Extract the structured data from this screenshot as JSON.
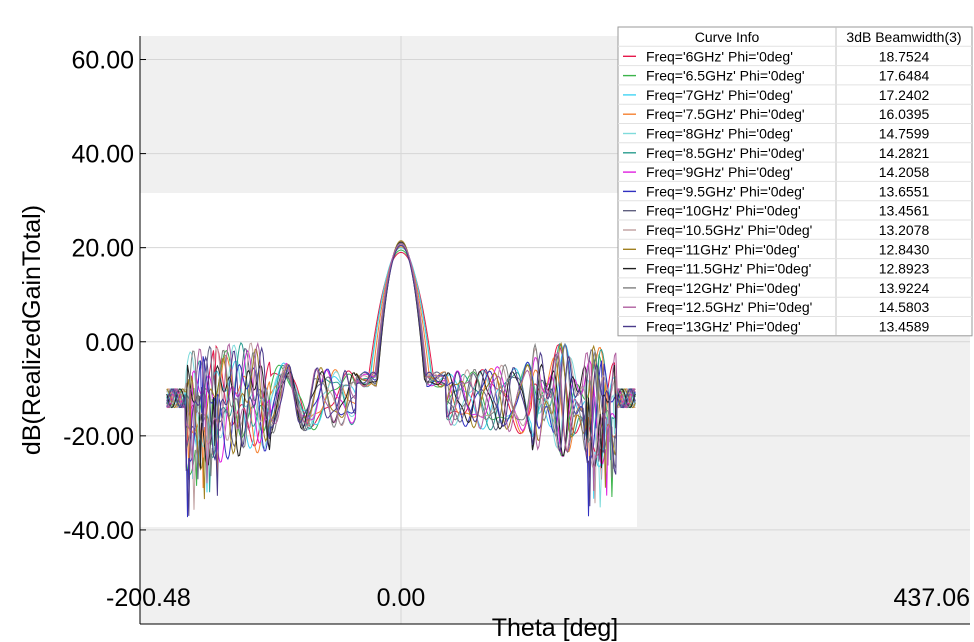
{
  "chart_data": {
    "type": "line",
    "xlabel": "Theta [deg]",
    "ylabel": "dB(RealizedGainTotal)",
    "xlim": [
      -200.48,
      437.06
    ],
    "ylim": [
      -60,
      65
    ],
    "x_ticks": [
      "-200.48",
      "0.00",
      "437.06"
    ],
    "y_ticks": [
      "60.00",
      "40.00",
      "20.00",
      "0.00",
      "-20.00",
      "-40.00"
    ],
    "grid": true,
    "legend_placement": "top-right",
    "legend_header": [
      "Curve Info",
      "3dB Beamwidth(3)"
    ],
    "series": [
      {
        "name": "Freq='6GHz' Phi='0deg'",
        "beamwidth": "18.7524",
        "color": "#e6194b"
      },
      {
        "name": "Freq='6.5GHz' Phi='0deg'",
        "beamwidth": "17.6484",
        "color": "#3cb44b"
      },
      {
        "name": "Freq='7GHz' Phi='0deg'",
        "beamwidth": "17.2402",
        "color": "#42d4f4"
      },
      {
        "name": "Freq='7.5GHz' Phi='0deg'",
        "beamwidth": "16.0395",
        "color": "#f58231"
      },
      {
        "name": "Freq='8GHz' Phi='0deg'",
        "beamwidth": "14.7599",
        "color": "#7fdbdb"
      },
      {
        "name": "Freq='8.5GHz' Phi='0deg'",
        "beamwidth": "14.2821",
        "color": "#2a9d8f"
      },
      {
        "name": "Freq='9GHz' Phi='0deg'",
        "beamwidth": "14.2058",
        "color": "#e020e0"
      },
      {
        "name": "Freq='9.5GHz' Phi='0deg'",
        "beamwidth": "13.6551",
        "color": "#3030c0"
      },
      {
        "name": "Freq='10GHz' Phi='0deg'",
        "beamwidth": "13.4561",
        "color": "#606080"
      },
      {
        "name": "Freq='10.5GHz' Phi='0deg'",
        "beamwidth": "13.2078",
        "color": "#c0a0a0"
      },
      {
        "name": "Freq='11GHz' Phi='0deg'",
        "beamwidth": "12.8430",
        "color": "#a08020"
      },
      {
        "name": "Freq='11.5GHz' Phi='0deg'",
        "beamwidth": "12.8923",
        "color": "#202020"
      },
      {
        "name": "Freq='12GHz' Phi='0deg'",
        "beamwidth": "13.9224",
        "color": "#808080"
      },
      {
        "name": "Freq='12.5GHz' Phi='0deg'",
        "beamwidth": "14.5803",
        "color": "#b060a0"
      },
      {
        "name": "Freq='13GHz' Phi='0deg'",
        "beamwidth": "13.4589",
        "color": "#4a3a8a"
      }
    ],
    "pattern": {
      "peak_db": [
        19,
        19.5,
        20,
        20.2,
        20.5,
        20.8,
        21,
        21,
        21.2,
        21.3,
        21.5,
        21.2,
        21,
        20.8,
        20.5
      ],
      "theta_range": [
        -180,
        180
      ],
      "sidelobe_floor_db": -25,
      "edge_level_db": -10
    }
  }
}
